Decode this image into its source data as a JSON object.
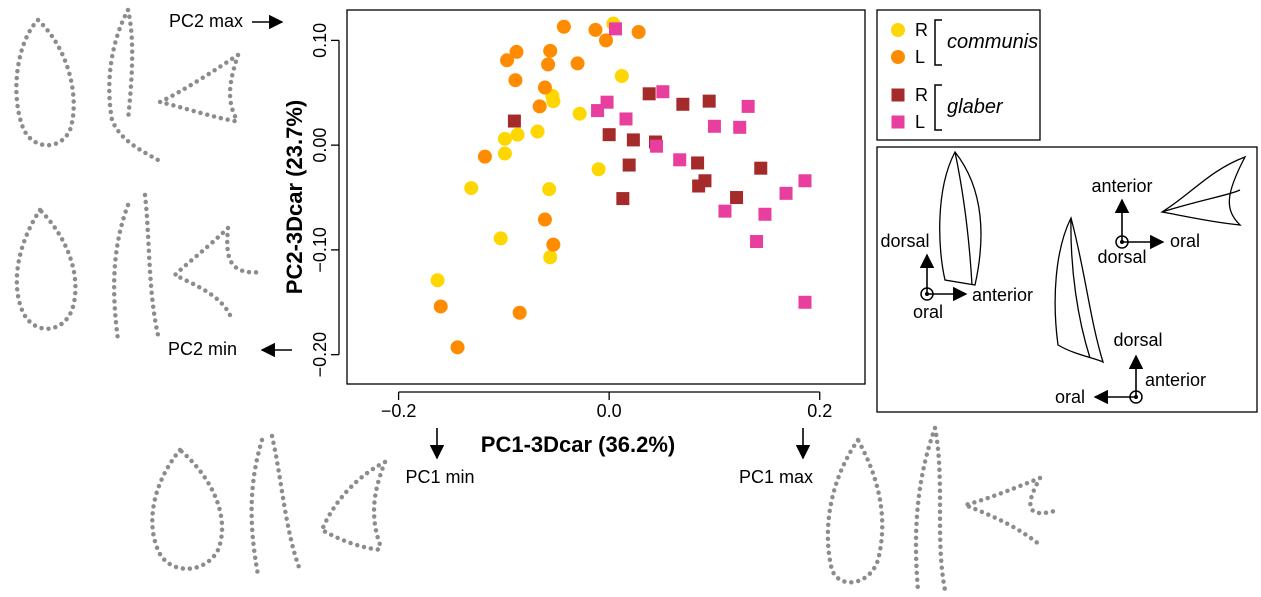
{
  "chart_data": {
    "type": "scatter",
    "xlabel": "PC1-3Dcar (36.2%)",
    "ylabel": "PC2-3Dcar (23.7%)",
    "xlim": [
      -0.249,
      0.243
    ],
    "ylim": [
      -0.228,
      0.129
    ],
    "xticks": [
      {
        "value": -0.2,
        "label": "−0.2"
      },
      {
        "value": 0,
        "label": "0.0"
      },
      0.2
    ],
    "yticks": [
      {
        "value": -0.2,
        "label": "−0.20"
      },
      {
        "value": -0.1,
        "label": "−0.10"
      },
      {
        "value": 0,
        "label": "0.00"
      },
      {
        "value": 0.1,
        "label": "0.10"
      }
    ],
    "legend_groups": [
      "communis",
      "glaber"
    ],
    "series": [
      {
        "name": "R",
        "color": "#FFD700",
        "marker": "circle",
        "x": [
          0.004,
          0.012,
          -0.054,
          -0.053,
          -0.028,
          -0.068,
          -0.087,
          -0.099,
          -0.099,
          -0.01,
          -0.131,
          -0.057,
          -0.103,
          -0.056,
          -0.163
        ],
        "y": [
          0.116,
          0.066,
          0.047,
          0.042,
          0.03,
          0.013,
          0.01,
          0.006,
          -0.008,
          -0.023,
          -0.041,
          -0.042,
          -0.089,
          -0.107,
          -0.129
        ]
      },
      {
        "name": "L",
        "color": "#FF8C00",
        "marker": "circle",
        "x": [
          -0.043,
          -0.003,
          -0.013,
          0.028,
          -0.088,
          -0.056,
          -0.097,
          -0.058,
          -0.03,
          -0.089,
          -0.061,
          -0.066,
          -0.118,
          -0.061,
          -0.053,
          -0.16,
          -0.085,
          -0.144
        ],
        "y": [
          0.113,
          0.1,
          0.11,
          0.108,
          0.089,
          0.09,
          0.081,
          0.077,
          0.078,
          0.062,
          0.055,
          0.037,
          -0.011,
          -0.071,
          -0.095,
          -0.154,
          -0.16,
          -0.193
        ]
      },
      {
        "name": "R",
        "color": "#A52A2A",
        "marker": "square",
        "x": [
          0.038,
          0.07,
          0.095,
          -0.09,
          0.0,
          0.023,
          0.044,
          0.019,
          0.084,
          0.144,
          0.091,
          0.085,
          0.121,
          0.013
        ],
        "y": [
          0.049,
          0.039,
          0.042,
          0.023,
          0.01,
          0.005,
          0.003,
          -0.019,
          -0.017,
          -0.022,
          -0.034,
          -0.039,
          -0.05,
          -0.051
        ]
      },
      {
        "name": "L",
        "color": "#E83E9E",
        "marker": "square",
        "x": [
          0.006,
          -0.002,
          -0.011,
          0.051,
          0.132,
          0.016,
          0.1,
          0.124,
          0.045,
          0.067,
          0.186,
          0.168,
          0.11,
          0.148,
          0.14,
          0.186
        ],
        "y": [
          0.111,
          0.041,
          0.033,
          0.051,
          0.037,
          0.025,
          0.018,
          0.017,
          -0.001,
          -0.014,
          -0.034,
          -0.046,
          -0.063,
          -0.066,
          -0.092,
          -0.15
        ]
      }
    ]
  },
  "annotations": {
    "pc2_max": "PC2 max",
    "pc2_min": "PC2 min",
    "pc1_min": "PC1 min",
    "pc1_max": "PC1 max"
  },
  "orientation_labels": [
    "anterior",
    "oral",
    "dorsal",
    "dorsal",
    "anterior",
    "oral",
    "dorsal",
    "anterior",
    "oral"
  ]
}
